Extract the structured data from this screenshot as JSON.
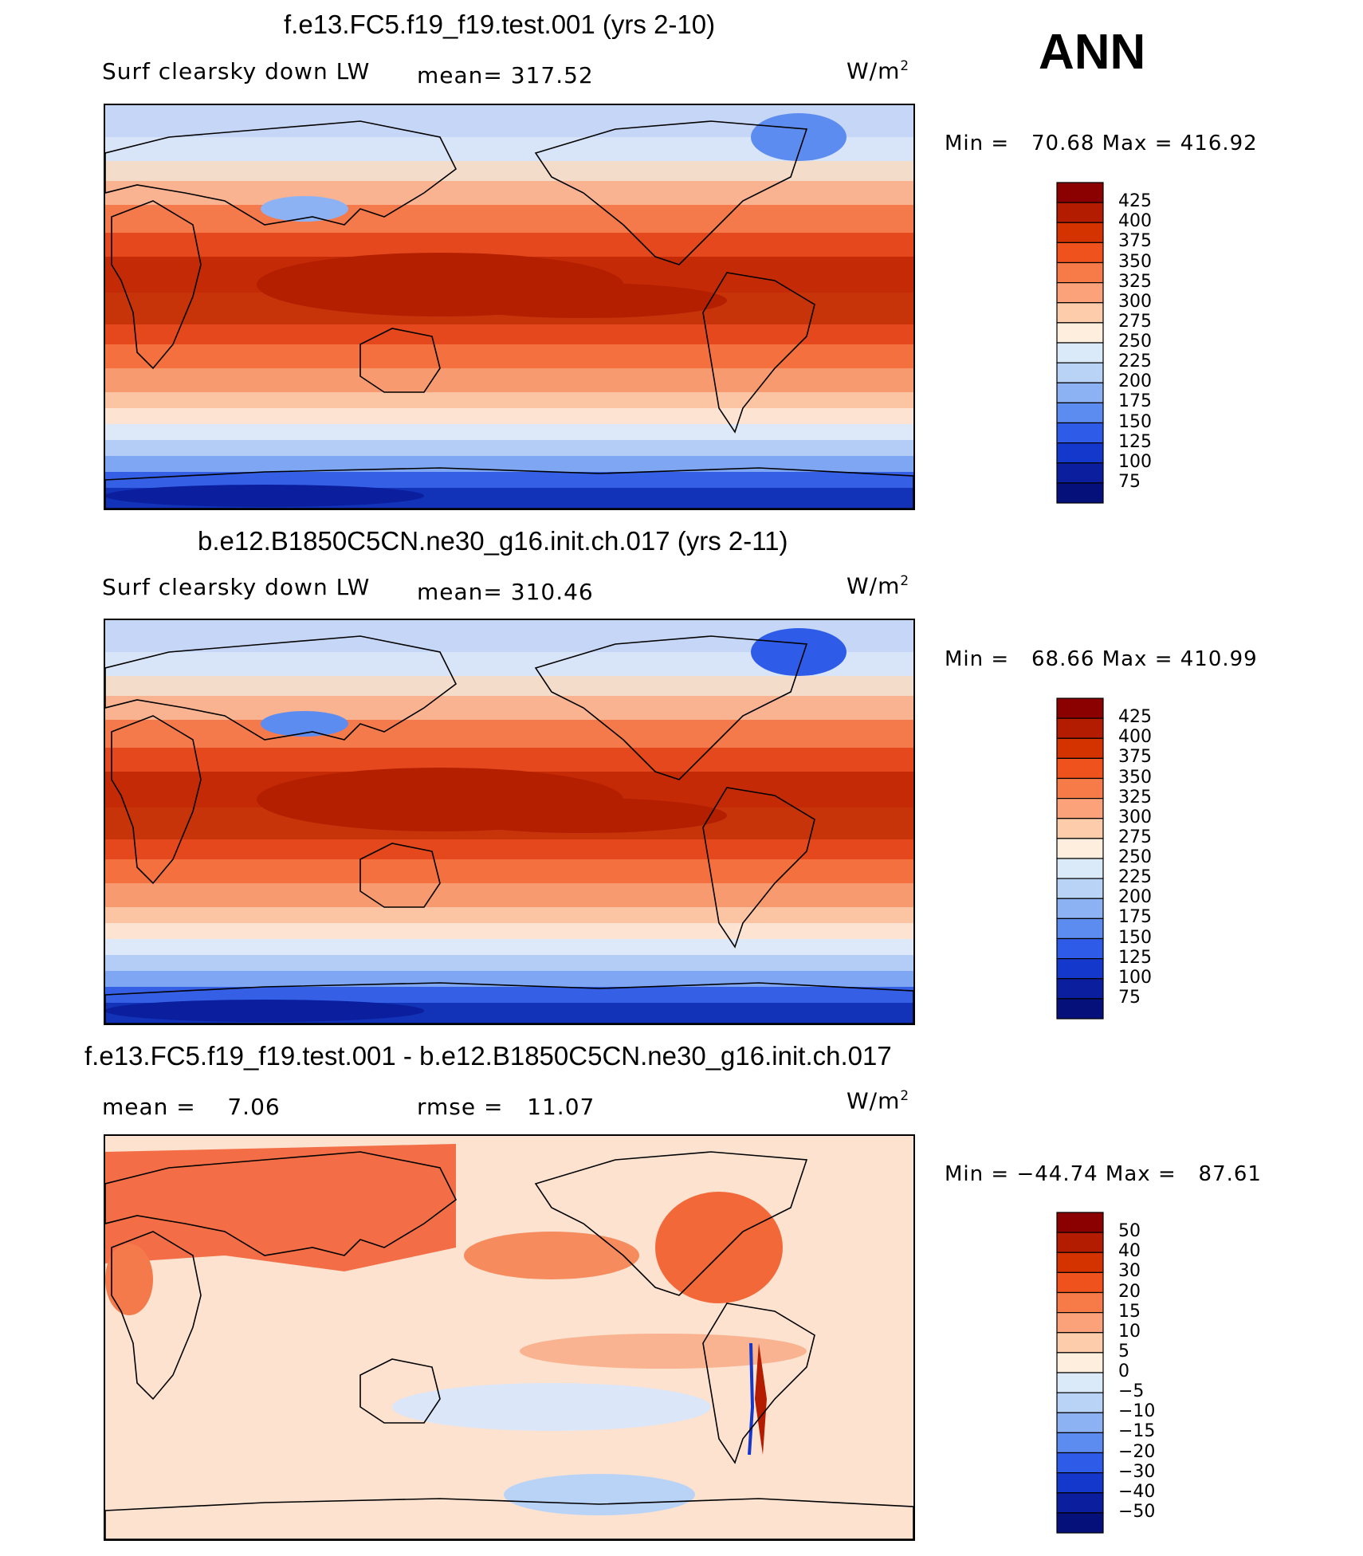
{
  "season": "ANN",
  "units_label": "W/m",
  "units_exp": "2",
  "panels": [
    {
      "title": "f.e13.FC5.f19_f19.test.001 (yrs 2-10)",
      "left_label": "Surf clearsky down LW",
      "mid_label": "mean= 317.52",
      "minmax": "Min =   70.68 Max = 416.92",
      "colorbar": {
        "levels": [
          "425",
          "400",
          "375",
          "350",
          "325",
          "300",
          "275",
          "250",
          "225",
          "200",
          "175",
          "150",
          "125",
          "100",
          "75"
        ],
        "colors": [
          "#8b0000",
          "#b31c00",
          "#d43300",
          "#f0521e",
          "#f77b48",
          "#fba27a",
          "#fdccab",
          "#fdeedd",
          "#dbeaf8",
          "#b9d3f7",
          "#8db2f4",
          "#5d8cf0",
          "#2e5ce8",
          "#1437cc",
          "#0a1e9e",
          "#06107a"
        ]
      },
      "chart_data": {
        "type": "heatmap",
        "title": "f.e13.FC5.f19_f19.test.001 (yrs 2-10)",
        "variable": "Surf clearsky down LW",
        "mean": 317.52,
        "min": 70.68,
        "max": 416.92,
        "contour_levels": [
          75,
          100,
          125,
          150,
          175,
          200,
          225,
          250,
          275,
          300,
          325,
          350,
          375,
          400,
          425
        ],
        "units": "W/m2"
      }
    },
    {
      "title": "b.e12.B1850C5CN.ne30_g16.init.ch.017 (yrs 2-11)",
      "left_label": "Surf clearsky down LW",
      "mid_label": "mean= 310.46",
      "minmax": "Min =   68.66 Max = 410.99",
      "colorbar": {
        "levels": [
          "425",
          "400",
          "375",
          "350",
          "325",
          "300",
          "275",
          "250",
          "225",
          "200",
          "175",
          "150",
          "125",
          "100",
          "75"
        ],
        "colors": [
          "#8b0000",
          "#b31c00",
          "#d43300",
          "#f0521e",
          "#f77b48",
          "#fba27a",
          "#fdccab",
          "#fdeedd",
          "#dbeaf8",
          "#b9d3f7",
          "#8db2f4",
          "#5d8cf0",
          "#2e5ce8",
          "#1437cc",
          "#0a1e9e",
          "#06107a"
        ]
      },
      "chart_data": {
        "type": "heatmap",
        "title": "b.e12.B1850C5CN.ne30_g16.init.ch.017 (yrs 2-11)",
        "variable": "Surf clearsky down LW",
        "mean": 310.46,
        "min": 68.66,
        "max": 410.99,
        "contour_levels": [
          75,
          100,
          125,
          150,
          175,
          200,
          225,
          250,
          275,
          300,
          325,
          350,
          375,
          400,
          425
        ],
        "units": "W/m2"
      }
    },
    {
      "title": "f.e13.FC5.f19_f19.test.001 - b.e12.B1850C5CN.ne30_g16.init.ch.017",
      "left_label": "mean =    7.06",
      "mid_label": "rmse =   11.07",
      "minmax": "Min = −44.74 Max =   87.61",
      "colorbar": {
        "levels": [
          "50",
          "40",
          "30",
          "20",
          "15",
          "10",
          "5",
          "0",
          "−5",
          "−10",
          "−15",
          "−20",
          "−30",
          "−40",
          "−50"
        ],
        "colors": [
          "#8b0000",
          "#b31c00",
          "#d43300",
          "#f0521e",
          "#f77b48",
          "#fba27a",
          "#fdccab",
          "#fdeedd",
          "#dbeaf8",
          "#b9d3f7",
          "#8db2f4",
          "#5d8cf0",
          "#2e5ce8",
          "#1437cc",
          "#0a1e9e",
          "#06107a"
        ]
      },
      "chart_data": {
        "type": "heatmap",
        "title": "f.e13.FC5.f19_f19.test.001 - b.e12.B1850C5CN.ne30_g16.init.ch.017",
        "variable": "difference",
        "mean": 7.06,
        "rmse": 11.07,
        "min": -44.74,
        "max": 87.61,
        "contour_levels": [
          -50,
          -40,
          -30,
          -20,
          -15,
          -10,
          -5,
          0,
          5,
          10,
          15,
          20,
          30,
          40,
          50
        ],
        "units": "W/m2"
      }
    }
  ]
}
